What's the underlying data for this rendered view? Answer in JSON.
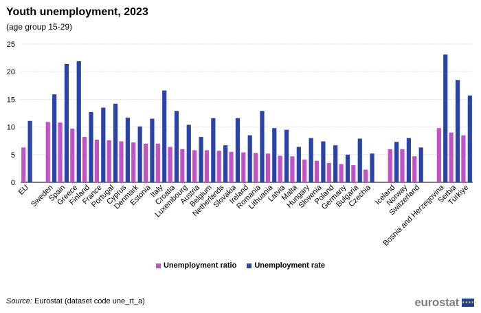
{
  "title": "Youth unemployment, 2023",
  "subtitle": "(age group 15-29)",
  "source_label": "Source:",
  "source_text": " Eurostat (dataset code une_rt_a)",
  "logo_text": "eurostat",
  "chart_data": {
    "type": "bar",
    "title": "Youth unemployment, 2023",
    "subtitle": "(age group 15-29)",
    "ylim": [
      0,
      25
    ],
    "yticks": [
      0,
      5,
      10,
      15,
      20,
      25
    ],
    "grid": true,
    "legend_position": "bottom",
    "categories": [
      "EU",
      "",
      "Sweden",
      "Spain",
      "Greece",
      "Finland",
      "France",
      "Portugal",
      "Cyprus",
      "Denmark",
      "Estonia",
      "Italy",
      "Croatia",
      "Luxembourg",
      "Austria",
      "Belgium",
      "Netherlands",
      "Slovakia",
      "Ireland",
      "Romania",
      "Lithuania",
      "Latvia",
      "Malta",
      "Hungary",
      "Slovenia",
      "Poland",
      "Germany",
      "Bulgaria",
      "Czechia",
      "",
      "Iceland",
      "Norway",
      "Switzerland",
      "",
      "Bosnia and Herzegovina",
      "Serbia",
      "Türkiye"
    ],
    "series": [
      {
        "name": "Unemployment ratio",
        "color": "#c153c4",
        "values": [
          6.3,
          null,
          10.9,
          10.8,
          9.7,
          8.2,
          7.7,
          7.6,
          7.4,
          7.2,
          7.0,
          7.0,
          6.4,
          6.0,
          5.8,
          5.8,
          5.7,
          5.5,
          5.4,
          5.3,
          5.2,
          4.8,
          4.7,
          4.1,
          3.9,
          3.5,
          3.3,
          3.1,
          2.3,
          null,
          6.0,
          6.0,
          4.7,
          null,
          9.8,
          9.0,
          8.5
        ]
      },
      {
        "name": "Unemployment rate",
        "color": "#2943a8",
        "values": [
          11.1,
          null,
          15.9,
          21.4,
          21.9,
          12.7,
          13.5,
          14.2,
          11.7,
          10.1,
          11.5,
          16.6,
          12.9,
          10.4,
          8.2,
          11.6,
          6.7,
          11.6,
          8.5,
          12.9,
          9.8,
          9.5,
          6.4,
          8.0,
          7.4,
          6.7,
          5.0,
          7.9,
          5.2,
          null,
          7.3,
          8.0,
          6.3,
          null,
          23.1,
          18.5,
          15.7
        ]
      }
    ]
  }
}
